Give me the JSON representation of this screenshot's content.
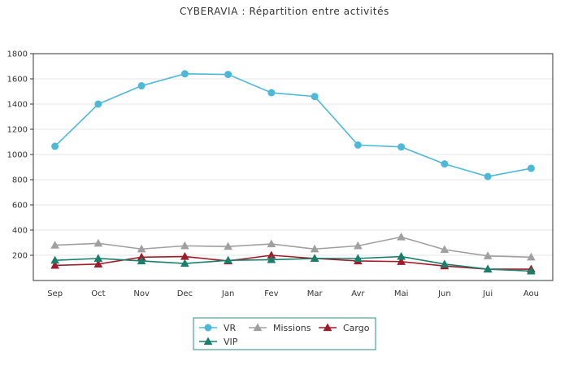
{
  "chart_data": {
    "type": "line",
    "title": "CYBERAVIA : Répartition entre activités",
    "xlabel": "",
    "ylabel": "",
    "categories": [
      "Sep",
      "Oct",
      "Nov",
      "Dec",
      "Jan",
      "Fev",
      "Mar",
      "Avr",
      "Mai",
      "Jun",
      "Jui",
      "Aou"
    ],
    "ylim": [
      0,
      1800
    ],
    "yticks": [
      200,
      400,
      600,
      800,
      1000,
      1200,
      1400,
      1600,
      1800
    ],
    "grid": true,
    "legend_position": "bottom",
    "series": [
      {
        "name": "VR",
        "color": "#4db8d8",
        "marker": "circle",
        "values": [
          1065,
          1400,
          1545,
          1640,
          1635,
          1490,
          1460,
          1075,
          1060,
          925,
          825,
          890
        ]
      },
      {
        "name": "Missions",
        "color": "#a0a0a0",
        "marker": "triangle",
        "values": [
          280,
          295,
          250,
          275,
          270,
          290,
          250,
          275,
          345,
          245,
          195,
          185
        ]
      },
      {
        "name": "Cargo",
        "color": "#a01c2a",
        "marker": "triangle",
        "values": [
          120,
          130,
          185,
          190,
          155,
          200,
          175,
          155,
          150,
          115,
          90,
          90
        ]
      },
      {
        "name": "VIP",
        "color": "#1a7f6a",
        "marker": "triangle",
        "values": [
          160,
          175,
          155,
          135,
          160,
          165,
          175,
          175,
          190,
          130,
          90,
          75
        ]
      }
    ]
  }
}
